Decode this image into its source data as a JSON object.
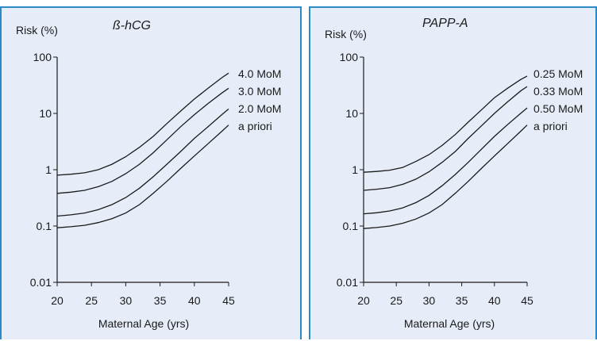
{
  "colors": {
    "background": "#e6edf8",
    "border": "#2b8bc6",
    "line": "#1a1a1a"
  },
  "chart_data": [
    {
      "type": "line",
      "title": "ß-hCG",
      "ylabel": "Risk (%)",
      "xlabel": "Maternal Age (yrs)",
      "y_scale": "log",
      "xlim": [
        20,
        45
      ],
      "ylim": [
        0.01,
        100
      ],
      "x_ticks": [
        "20",
        "25",
        "30",
        "35",
        "40",
        "45"
      ],
      "y_ticks": [
        "100",
        "10",
        "1",
        "0.1",
        "0.01"
      ],
      "x": [
        20,
        22,
        24,
        26,
        28,
        30,
        32,
        34,
        36,
        38,
        40,
        42,
        44,
        45
      ],
      "series": [
        {
          "name": "4.0 MoM",
          "values": [
            0.8,
            0.83,
            0.88,
            1.0,
            1.25,
            1.7,
            2.5,
            3.9,
            6.6,
            11,
            18,
            28,
            43,
            52
          ]
        },
        {
          "name": "3.0 MoM",
          "values": [
            0.38,
            0.4,
            0.43,
            0.5,
            0.62,
            0.85,
            1.25,
            2.0,
            3.4,
            5.8,
            9.5,
            15,
            23,
            28
          ]
        },
        {
          "name": "2.0 MoM",
          "values": [
            0.15,
            0.158,
            0.17,
            0.195,
            0.24,
            0.32,
            0.47,
            0.75,
            1.25,
            2.1,
            3.6,
            5.8,
            9.5,
            12
          ]
        },
        {
          "name": "a priori",
          "values": [
            0.093,
            0.097,
            0.103,
            0.115,
            0.135,
            0.17,
            0.24,
            0.38,
            0.62,
            1.05,
            1.75,
            2.9,
            4.8,
            6.2
          ]
        }
      ]
    },
    {
      "type": "line",
      "title": "PAPP-A",
      "ylabel": "Risk (%)",
      "xlabel": "Maternal Age (yrs)",
      "y_scale": "log",
      "xlim": [
        20,
        45
      ],
      "ylim": [
        0.01,
        100
      ],
      "x_ticks": [
        "20",
        "25",
        "30",
        "35",
        "40",
        "45"
      ],
      "y_ticks": [
        "100",
        "10",
        "1",
        "0.1",
        "0.01"
      ],
      "x": [
        20,
        22,
        24,
        26,
        28,
        30,
        32,
        34,
        36,
        38,
        40,
        42,
        44,
        45
      ],
      "series": [
        {
          "name": "0.25 MoM",
          "values": [
            0.9,
            0.93,
            0.98,
            1.1,
            1.4,
            1.85,
            2.7,
            4.2,
            7.0,
            11.5,
            19,
            28,
            40,
            46
          ]
        },
        {
          "name": "0.33 MoM",
          "values": [
            0.43,
            0.45,
            0.48,
            0.55,
            0.68,
            0.92,
            1.35,
            2.1,
            3.6,
            6.0,
            10,
            16,
            25,
            30
          ]
        },
        {
          "name": "0.50 MoM",
          "values": [
            0.165,
            0.172,
            0.185,
            0.21,
            0.26,
            0.35,
            0.52,
            0.82,
            1.35,
            2.3,
            3.9,
            6.3,
            10,
            12.5
          ]
        },
        {
          "name": "a priori",
          "values": [
            0.09,
            0.094,
            0.1,
            0.112,
            0.133,
            0.17,
            0.24,
            0.38,
            0.62,
            1.05,
            1.75,
            2.9,
            4.8,
            6.2
          ]
        }
      ]
    }
  ]
}
